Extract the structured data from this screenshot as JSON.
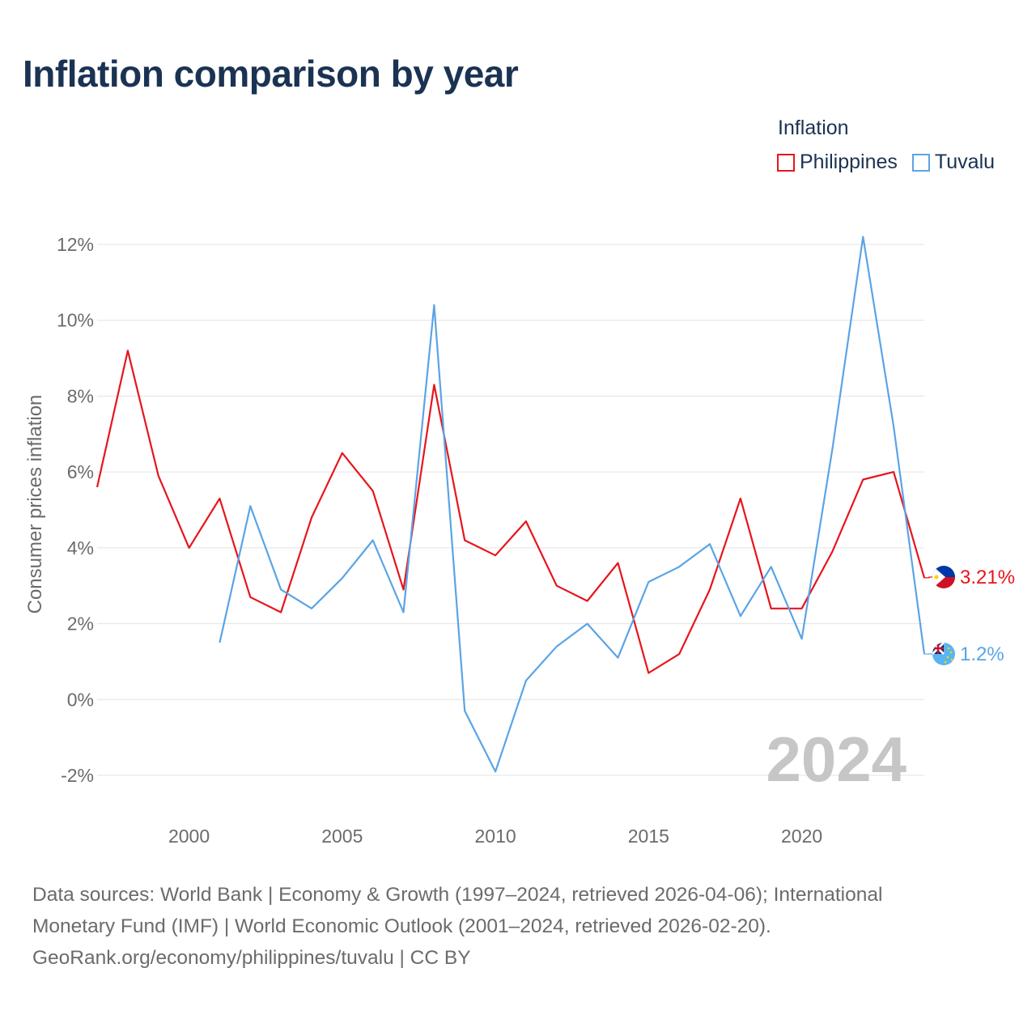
{
  "title": "Inflation comparison by year",
  "legend": {
    "title": "Inflation",
    "items": [
      {
        "label": "Philippines",
        "color": "#e8141c"
      },
      {
        "label": "Tuvalu",
        "color": "#5aa4e6"
      }
    ]
  },
  "watermark_year": "2024",
  "source": {
    "line1": "Data sources: World Bank | Economy & Growth (1997–2024, retrieved 2026-04-06); International",
    "line2": "Monetary Fund (IMF) | World Economic Outlook (2001–2024, retrieved 2026-02-20).",
    "line3": "GeoRank.org/economy/philippines/tuvalu | CC BY"
  },
  "chart_data": {
    "type": "line",
    "title": "Inflation comparison by year",
    "xlabel": "",
    "ylabel": "Consumer prices inflation",
    "xlim": [
      1997,
      2024
    ],
    "ylim": [
      -2,
      12
    ],
    "grid": true,
    "legend_position": "top-right",
    "x_ticks": [
      2000,
      2005,
      2010,
      2015,
      2020
    ],
    "x_tick_labels": [
      "2000",
      "2005",
      "2010",
      "2015",
      "2020"
    ],
    "y_ticks": [
      -2,
      0,
      2,
      4,
      6,
      8,
      10,
      12
    ],
    "y_tick_labels": [
      "-2%",
      "0%",
      "2%",
      "4%",
      "6%",
      "8%",
      "10%",
      "12%"
    ],
    "series": [
      {
        "name": "Philippines",
        "color": "#e8141c",
        "end_label": "3.21%",
        "flag_icon": "philippines-flag-icon",
        "x": [
          1997,
          1998,
          1999,
          2000,
          2001,
          2002,
          2003,
          2004,
          2005,
          2006,
          2007,
          2008,
          2009,
          2010,
          2011,
          2012,
          2013,
          2014,
          2015,
          2016,
          2017,
          2018,
          2019,
          2020,
          2021,
          2022,
          2023,
          2024
        ],
        "values": [
          5.6,
          9.2,
          5.9,
          4.0,
          5.3,
          2.7,
          2.3,
          4.8,
          6.5,
          5.5,
          2.9,
          8.3,
          4.2,
          3.8,
          4.7,
          3.0,
          2.6,
          3.6,
          0.7,
          1.2,
          2.9,
          5.3,
          2.4,
          2.4,
          3.9,
          5.8,
          6.0,
          3.21
        ]
      },
      {
        "name": "Tuvalu",
        "color": "#5aa4e6",
        "end_label": "1.2%",
        "flag_icon": "tuvalu-flag-icon",
        "x": [
          2001,
          2002,
          2003,
          2004,
          2005,
          2006,
          2007,
          2008,
          2009,
          2010,
          2011,
          2012,
          2013,
          2014,
          2015,
          2016,
          2017,
          2018,
          2019,
          2020,
          2021,
          2022,
          2023,
          2024
        ],
        "values": [
          1.5,
          5.1,
          2.9,
          2.4,
          3.2,
          4.2,
          2.3,
          10.4,
          -0.3,
          -1.9,
          0.5,
          1.4,
          2.0,
          1.1,
          3.1,
          3.5,
          4.1,
          2.2,
          3.5,
          1.6,
          6.6,
          12.2,
          7.2,
          1.2
        ]
      }
    ]
  }
}
